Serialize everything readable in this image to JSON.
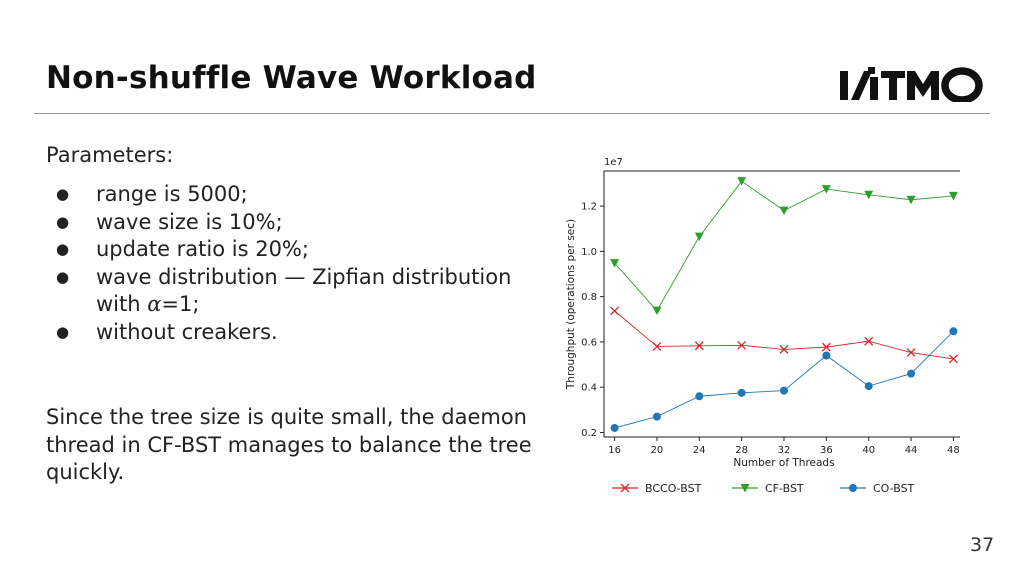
{
  "slide": {
    "title": "Non-shuffle Wave Workload",
    "logo_text": "ITMO",
    "page_number": "37"
  },
  "params": {
    "heading": "Parameters:",
    "items": [
      {
        "text": "range is 5000;"
      },
      {
        "text": "wave size is 10%;"
      },
      {
        "text": "update ratio is 20%;"
      },
      {
        "text_before": "wave distribution — Zipfian distribution with ",
        "symbol": "α",
        "text_after": "=1;"
      },
      {
        "text": "without creakers."
      }
    ]
  },
  "summary": "Since the tree size is quite small, the daemon thread in CF-BST manages to balance the tree quickly.",
  "chart_data": {
    "type": "line",
    "xlabel": "Number of Threads",
    "ylabel": "Throughput (operations per sec)",
    "y_multiplier": "1e7",
    "x": [
      16,
      20,
      24,
      28,
      32,
      36,
      40,
      44,
      48
    ],
    "xlim": [
      15,
      49
    ],
    "ylim": [
      0.18,
      1.355
    ],
    "yticks": [
      0.2,
      0.4,
      0.6,
      0.8,
      1.0,
      1.2
    ],
    "ytick_labels": [
      "0.2",
      "0.4",
      "0.6",
      "0.8",
      "1.0",
      "1.2"
    ],
    "grid": false,
    "legend_position": "bottom",
    "series": [
      {
        "name": "BCCO-BST",
        "color": "#d62728",
        "marker": "x",
        "values": [
          0.737,
          0.58,
          0.583,
          0.585,
          0.567,
          0.577,
          0.603,
          0.553,
          0.525
        ]
      },
      {
        "name": "CF-BST",
        "color": "#2ca02c",
        "marker": "triangle-down",
        "values": [
          0.948,
          0.738,
          1.065,
          1.31,
          1.18,
          1.275,
          1.25,
          1.228,
          1.245
        ]
      },
      {
        "name": "CO-BST",
        "color": "#1f77b4",
        "marker": "circle",
        "values": [
          0.22,
          0.27,
          0.36,
          0.375,
          0.385,
          0.54,
          0.405,
          0.46,
          0.647
        ]
      }
    ]
  }
}
